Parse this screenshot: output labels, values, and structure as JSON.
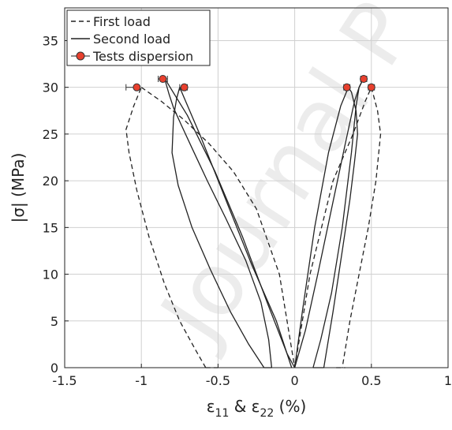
{
  "watermark": "Journal P",
  "chart_data": {
    "type": "line",
    "xlabel": {
      "eps": "ε",
      "sub1": "11",
      "amp": " & ",
      "sub2": "22",
      "unit": " (%)"
    },
    "ylabel": "|σ|  (MPa)",
    "xlim": [
      -1.5,
      1
    ],
    "ylim": [
      0,
      38.5
    ],
    "xticks": [
      -1.5,
      -1,
      -0.5,
      0,
      0.5,
      1
    ],
    "xtick_labels": [
      "-1.5",
      "-1",
      "-0.5",
      "0",
      "0.5",
      "1"
    ],
    "yticks": [
      0,
      5,
      10,
      15,
      20,
      25,
      30,
      35
    ],
    "ytick_labels": [
      "0",
      "5",
      "10",
      "15",
      "20",
      "25",
      "30",
      "35"
    ],
    "grid": true,
    "legend_position": "top-left",
    "legend": [
      {
        "label": "First load",
        "style": "dashed"
      },
      {
        "label": "Second load",
        "style": "solid"
      },
      {
        "label": "Tests dispersion",
        "style": "marker"
      }
    ],
    "colors": {
      "line": "#222222",
      "marker_fill": "#e8402e",
      "marker_edge": "#333333",
      "grid": "#d0d0d0"
    },
    "series": [
      {
        "style": "dashed",
        "x": [
          -0.58,
          -0.65,
          -0.75,
          -0.85,
          -0.95,
          -1.03,
          -1.08,
          -1.1,
          -1.05,
          -1.0
        ],
        "y": [
          0,
          2,
          5,
          9,
          14,
          19,
          23,
          25.5,
          28,
          30
        ]
      },
      {
        "style": "dashed",
        "x": [
          -1.0,
          -0.87,
          -0.72,
          -0.56,
          -0.4,
          -0.25,
          -0.1,
          0.0
        ],
        "y": [
          30,
          28.5,
          26.5,
          24,
          21,
          17,
          10,
          0
        ]
      },
      {
        "style": "dashed",
        "x": [
          -0.58,
          -0.5
        ],
        "y": [
          0,
          0
        ]
      },
      {
        "style": "dashed",
        "x": [
          0.0,
          0.1,
          0.25,
          0.38,
          0.46,
          0.5
        ],
        "y": [
          0,
          10,
          20,
          25,
          28.5,
          30
        ]
      },
      {
        "style": "dashed",
        "x": [
          0.5,
          0.54,
          0.56,
          0.53,
          0.48,
          0.42,
          0.36,
          0.31
        ],
        "y": [
          30,
          27.5,
          25,
          20,
          15,
          10,
          5,
          0
        ]
      },
      {
        "style": "dashed",
        "x": [
          0.27,
          0.33
        ],
        "y": [
          0,
          0
        ]
      },
      {
        "style": "solid",
        "x": [
          -0.2,
          -0.3,
          -0.42,
          -0.55,
          -0.67,
          -0.76,
          -0.8,
          -0.79,
          -0.77,
          -0.75
        ],
        "y": [
          0,
          2.5,
          6,
          10.5,
          15,
          19.5,
          23,
          26.8,
          28.8,
          30
        ]
      },
      {
        "style": "solid",
        "x": [
          -0.75,
          -0.62,
          -0.45,
          -0.28,
          -0.12,
          -0.02
        ],
        "y": [
          30,
          25,
          18,
          11,
          5,
          0
        ]
      },
      {
        "style": "solid",
        "x": [
          -0.2,
          -0.15
        ],
        "y": [
          0,
          0
        ]
      },
      {
        "style": "solid",
        "x": [
          -0.15,
          -0.17,
          -0.22,
          -0.32,
          -0.45,
          -0.57,
          -0.67,
          -0.74,
          -0.79,
          -0.82,
          -0.85
        ],
        "y": [
          0,
          3,
          7,
          11.5,
          16,
          20,
          23.5,
          26,
          27.8,
          29.3,
          31
        ]
      },
      {
        "style": "solid",
        "x": [
          -0.85,
          -0.7,
          -0.52,
          -0.34,
          -0.18,
          -0.05,
          0.0
        ],
        "y": [
          31,
          27,
          21,
          14,
          7,
          1.5,
          0
        ]
      },
      {
        "style": "solid",
        "x": [
          0.0,
          0.07,
          0.15,
          0.24,
          0.33,
          0.39,
          0.42,
          0.45
        ],
        "y": [
          0,
          4,
          10,
          17,
          24,
          28.5,
          30,
          31
        ]
      },
      {
        "style": "solid",
        "x": [
          0.45,
          0.42,
          0.4,
          0.37,
          0.31,
          0.24,
          0.17,
          0.12
        ],
        "y": [
          31,
          30,
          28,
          23,
          15,
          8,
          3,
          0
        ]
      },
      {
        "style": "solid",
        "x": [
          0.12,
          0.19
        ],
        "y": [
          0,
          0
        ]
      },
      {
        "style": "solid",
        "x": [
          0.19,
          0.25,
          0.31,
          0.36,
          0.39,
          0.41,
          0.4,
          0.37,
          0.35
        ],
        "y": [
          0,
          6,
          12.5,
          18,
          22,
          25,
          27.5,
          29.5,
          30
        ]
      },
      {
        "style": "solid",
        "x": [
          0.35,
          0.3,
          0.22,
          0.13,
          0.05,
          0.0
        ],
        "y": [
          30,
          28,
          23,
          15,
          6,
          0
        ]
      }
    ],
    "dispersion_points": [
      {
        "x": -1.03,
        "y": 30,
        "xerr_low": 0.07,
        "xerr_high": 0.0
      },
      {
        "x": -0.86,
        "y": 30.9,
        "xerr_low": 0.03,
        "xerr_high": 0.03
      },
      {
        "x": -0.72,
        "y": 30,
        "xerr_low": 0.03,
        "xerr_high": 0.02
      },
      {
        "x": 0.34,
        "y": 30,
        "xerr_low": 0.02,
        "xerr_high": 0.02
      },
      {
        "x": 0.45,
        "y": 30.9,
        "xerr_low": 0.02,
        "xerr_high": 0.02
      },
      {
        "x": 0.5,
        "y": 30,
        "xerr_low": 0.02,
        "xerr_high": 0.02
      }
    ]
  }
}
